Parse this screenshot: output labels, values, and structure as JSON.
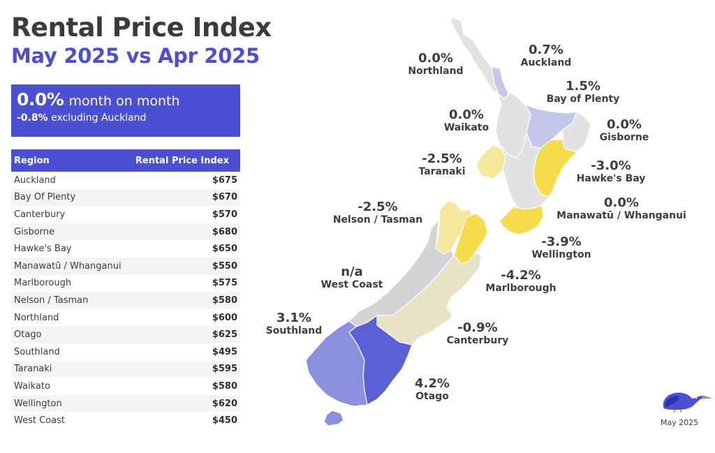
{
  "header": {
    "title": "Rental Price Index",
    "subtitle": "May 2025 vs Apr 2025"
  },
  "summary": {
    "value": "0.0%",
    "label": "month on month",
    "sub_value": "-0.8%",
    "sub_label": "excluding Auckland"
  },
  "table": {
    "col_region": "Region",
    "col_index": "Rental Price Index",
    "rows": [
      {
        "region": "Auckland",
        "value": "$675"
      },
      {
        "region": "Bay Of Plenty",
        "value": "$670"
      },
      {
        "region": "Canterbury",
        "value": "$570"
      },
      {
        "region": "Gisborne",
        "value": "$680"
      },
      {
        "region": "Hawke's Bay",
        "value": "$650"
      },
      {
        "region": "Manawatū / Whanganui",
        "value": "$550"
      },
      {
        "region": "Marlborough",
        "value": "$575"
      },
      {
        "region": "Nelson / Tasman",
        "value": "$580"
      },
      {
        "region": "Northland",
        "value": "$600"
      },
      {
        "region": "Otago",
        "value": "$625"
      },
      {
        "region": "Southland",
        "value": "$495"
      },
      {
        "region": "Taranaki",
        "value": "$595"
      },
      {
        "region": "Waikato",
        "value": "$580"
      },
      {
        "region": "Wellington",
        "value": "$620"
      },
      {
        "region": "West Coast",
        "value": "$450"
      }
    ]
  },
  "map": {
    "labels": {
      "northland": {
        "pct": "0.0%",
        "name": "Northland"
      },
      "auckland": {
        "pct": "0.7%",
        "name": "Auckland"
      },
      "bay_of_plenty": {
        "pct": "1.5%",
        "name": "Bay of Plenty"
      },
      "waikato": {
        "pct": "0.0%",
        "name": "Waikato"
      },
      "gisborne": {
        "pct": "0.0%",
        "name": "Gisborne"
      },
      "taranaki": {
        "pct": "-2.5%",
        "name": "Taranaki"
      },
      "hawkes_bay": {
        "pct": "-3.0%",
        "name": "Hawke's Bay"
      },
      "nelson_tasman": {
        "pct": "-2.5%",
        "name": "Nelson / Tasman"
      },
      "manawatu": {
        "pct": "0.0%",
        "name": "Manawatū / Whanganui"
      },
      "wellington": {
        "pct": "-3.9%",
        "name": "Wellington"
      },
      "west_coast": {
        "pct": "n/a",
        "name": "West Coast"
      },
      "marlborough": {
        "pct": "-4.2%",
        "name": "Marlborough"
      },
      "southland": {
        "pct": "3.1%",
        "name": "Southland"
      },
      "canterbury": {
        "pct": "-0.9%",
        "name": "Canterbury"
      },
      "otago": {
        "pct": "4.2%",
        "name": "Otago"
      }
    },
    "colors": {
      "neutral": "#e2e2e4",
      "light_blue": "#c3c7ea",
      "yellow_light": "#f5e79b",
      "yellow": "#f5dc4a",
      "canterbury_beige": "#e6e3c6",
      "west_coast_grey": "#d4d4d6",
      "southland_blue": "#8a8fe0",
      "otago_blue": "#5c60d6"
    }
  },
  "footer": {
    "logo_icon": "kiwi-bird-icon",
    "date": "May 2025"
  }
}
